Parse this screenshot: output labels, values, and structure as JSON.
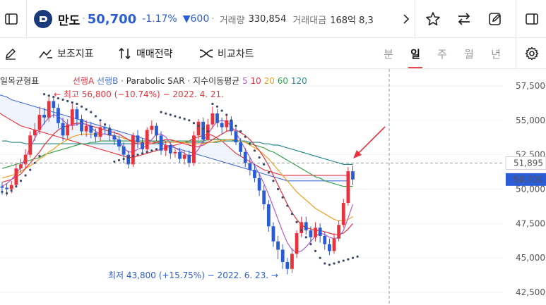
{
  "header": {
    "stock_name": "만도",
    "price": "50,700",
    "change_rate": "-1.17%",
    "change_amount": "▼600",
    "volume_label": "거래량",
    "volume_value": "330,854",
    "amount_label": "거래대금",
    "amount_value": "168억 8,3"
  },
  "toolbar": {
    "indicator_label": "보조지표",
    "strategy_label": "매매전략",
    "compare_label": "비교차트",
    "periods": [
      "분",
      "일",
      "주",
      "월",
      "년"
    ],
    "active_period": "일"
  },
  "legend": {
    "ichimoku": "일목균형표",
    "span_a": "선행A",
    "span_b": "선행B",
    "sar": "Parabolic SAR",
    "ma_label": "지수이동평균",
    "ma_periods": [
      "5",
      "10",
      "20",
      "60",
      "120"
    ]
  },
  "annotations": {
    "high": "← 최고 56,800 (−10.74%) − 2022. 4. 21.",
    "low": "최저 43,800 (+15.75%) − 2022. 6. 23. →"
  },
  "colors": {
    "up": "#e8323c",
    "down": "#2a5cd6",
    "span_a": "#e8323c",
    "span_b": "#4a6fd6",
    "sar": "#3a4a66",
    "ma5": "#b05cd0",
    "ma10": "#e8323c",
    "ma20": "#f0a020",
    "ma60": "#3aa050",
    "ma120": "#2a8a8a"
  },
  "chart_data": {
    "type": "candlestick",
    "y_ticks": [
      "57,500",
      "55,000",
      "52,500",
      "50,000",
      "47,500",
      "45,000",
      "42,500"
    ],
    "ylim": [
      42000,
      58800
    ],
    "current_price_label": "50,700",
    "crosshair_price_label": "51,895",
    "candles": [
      [
        50200,
        50100,
        50500,
        49600
      ],
      [
        50100,
        50000,
        50400,
        49500
      ],
      [
        50000,
        50300,
        50600,
        49700
      ],
      [
        50300,
        51500,
        51800,
        50100
      ],
      [
        51500,
        51800,
        52200,
        51200
      ],
      [
        51800,
        52500,
        52900,
        51500
      ],
      [
        52500,
        53900,
        54200,
        52300
      ],
      [
        53900,
        54300,
        54800,
        53500
      ],
      [
        54300,
        55400,
        56000,
        54000
      ],
      [
        55400,
        55200,
        55900,
        54700
      ],
      [
        55200,
        56400,
        56800,
        54900
      ],
      [
        56400,
        55900,
        56600,
        55200
      ],
      [
        55900,
        54800,
        56200,
        54400
      ],
      [
        54800,
        53900,
        55200,
        53500
      ],
      [
        53900,
        54700,
        55100,
        53600
      ],
      [
        54700,
        55800,
        56200,
        54300
      ],
      [
        55800,
        55100,
        56000,
        54600
      ],
      [
        55100,
        54200,
        55400,
        53900
      ],
      [
        54200,
        54600,
        55000,
        53800
      ],
      [
        54600,
        54100,
        54900,
        53700
      ],
      [
        54100,
        53800,
        54400,
        53400
      ],
      [
        53800,
        54500,
        54900,
        53500
      ],
      [
        54500,
        54400,
        54800,
        54000
      ],
      [
        54400,
        53900,
        54700,
        53500
      ],
      [
        53900,
        53600,
        54200,
        53200
      ],
      [
        53600,
        53100,
        53900,
        52800
      ],
      [
        53100,
        52500,
        53400,
        51900
      ],
      [
        52500,
        51800,
        52800,
        51500
      ],
      [
        51800,
        53900,
        54100,
        51600
      ],
      [
        53900,
        53400,
        54300,
        53000
      ],
      [
        53400,
        52900,
        53700,
        52600
      ],
      [
        52900,
        54300,
        54500,
        52700
      ],
      [
        54300,
        54600,
        55000,
        54000
      ],
      [
        54600,
        53900,
        54800,
        53500
      ],
      [
        53900,
        52800,
        54200,
        52500
      ],
      [
        52800,
        53200,
        53500,
        52400
      ],
      [
        53200,
        52600,
        53400,
        52200
      ],
      [
        52600,
        52700,
        53000,
        52300
      ],
      [
        52700,
        52200,
        53000,
        51900
      ],
      [
        52200,
        52500,
        52800,
        51800
      ],
      [
        52500,
        51900,
        52800,
        51600
      ],
      [
        51900,
        53900,
        54200,
        51700
      ],
      [
        53900,
        54900,
        55100,
        53600
      ],
      [
        54900,
        53600,
        55200,
        53300
      ],
      [
        53600,
        54700,
        55100,
        53500
      ],
      [
        54700,
        55500,
        56000,
        54400
      ],
      [
        55500,
        54800,
        55800,
        54500
      ],
      [
        54800,
        54500,
        55200,
        54000
      ],
      [
        54500,
        55000,
        55400,
        54200
      ],
      [
        55000,
        54200,
        55300,
        53900
      ],
      [
        54200,
        53400,
        54500,
        53200
      ],
      [
        53400,
        52700,
        53700,
        52400
      ],
      [
        52700,
        51900,
        53000,
        51600
      ],
      [
        51900,
        51400,
        52300,
        51000
      ],
      [
        51400,
        50800,
        51800,
        50500
      ],
      [
        50800,
        49900,
        51200,
        49500
      ],
      [
        49900,
        48900,
        50300,
        48500
      ],
      [
        48900,
        47300,
        49200,
        46900
      ],
      [
        47300,
        46200,
        47600,
        45800
      ],
      [
        46200,
        45600,
        46600,
        44900
      ],
      [
        45600,
        44700,
        46000,
        44200
      ],
      [
        44700,
        44200,
        45000,
        43800
      ],
      [
        44200,
        45300,
        45700,
        43900
      ],
      [
        45300,
        46800,
        47000,
        45000
      ],
      [
        46800,
        47600,
        48000,
        46500
      ],
      [
        47600,
        47000,
        48000,
        46700
      ],
      [
        47000,
        46500,
        47300,
        46100
      ],
      [
        46500,
        47200,
        47600,
        46200
      ],
      [
        47200,
        46600,
        47500,
        46100
      ],
      [
        46600,
        46000,
        46900,
        45600
      ],
      [
        46000,
        45500,
        46400,
        45200
      ],
      [
        45500,
        46400,
        46800,
        45300
      ],
      [
        46400,
        47400,
        47700,
        46200
      ],
      [
        47400,
        49000,
        49300,
        47200
      ],
      [
        49000,
        51300,
        51600,
        48800
      ],
      [
        51300,
        50700,
        51700,
        50300
      ]
    ],
    "span_a": [
      56500,
      56200,
      55900,
      55700,
      55400,
      55200,
      55000,
      54800,
      54600,
      54500,
      54400,
      54300,
      54200,
      54100,
      54000,
      53900,
      53800,
      53700,
      53600,
      53500,
      53400,
      53300,
      53200,
      53100,
      53000,
      52900,
      52800,
      52700,
      52600,
      52500,
      52400,
      52300,
      52300,
      52400,
      52500,
      52600,
      52700,
      52800,
      52900,
      53000,
      53100,
      53200,
      53300,
      53400,
      53500,
      53700,
      53800,
      53900,
      54000,
      53900,
      53700,
      53500,
      53200,
      52900,
      52600,
      52400,
      52200,
      52000,
      51800,
      51600,
      51400,
      51300,
      51200,
      51100,
      51000,
      51000,
      51000,
      51000,
      51000,
      51000,
      51000,
      51000,
      51000,
      51000,
      51000,
      51000,
      51000,
      51000,
      51000
    ],
    "span_b": [
      57000,
      57000,
      57000,
      56900,
      56800,
      56700,
      56500,
      56400,
      56300,
      56200,
      56100,
      56000,
      55900,
      55800,
      55700,
      55600,
      55500,
      55400,
      55300,
      55200,
      55100,
      55000,
      54900,
      54800,
      54700,
      54600,
      54500,
      54400,
      54300,
      54200,
      54100,
      54000,
      53900,
      53800,
      53700,
      53600,
      53500,
      53400,
      53300,
      53200,
      53100,
      53000,
      52900,
      52800,
      52700,
      52600,
      52500,
      52400,
      52300,
      52200,
      52100,
      52000,
      51900,
      51800,
      51700,
      51600,
      51500,
      51400,
      51300,
      51200,
      51100,
      51000,
      50900,
      50800,
      50700,
      50600,
      50600,
      50600,
      50600,
      50600,
      50600,
      50600,
      50600,
      50600,
      50600,
      50600,
      50600,
      50600,
      50600
    ],
    "sar": [
      49800,
      49700,
      49900,
      50200,
      50600,
      51000,
      51400,
      51900,
      52400,
      56900,
      56800,
      56700,
      56600,
      56500,
      56400,
      56300,
      56200,
      56000,
      55800,
      55600,
      55300,
      55000,
      54700,
      54400,
      52000,
      52100,
      52200,
      52300,
      52400,
      52500,
      52600,
      52700,
      52800,
      52900,
      55600,
      55500,
      55400,
      55300,
      55200,
      55100,
      55000,
      54800,
      54600,
      54400,
      54200,
      56200,
      56000,
      55700,
      55400,
      55000,
      54600,
      54200,
      53800,
      53300,
      52800,
      52300,
      51800,
      51200,
      50600,
      50000,
      49400,
      48800,
      48200,
      47600,
      47000,
      46500,
      46000,
      45500,
      45000,
      44600,
      44500,
      44600,
      44700,
      44800,
      44900,
      45000,
      45100
    ],
    "ma5": [
      50200,
      50400,
      50700,
      51100,
      51600,
      52300,
      53000,
      53700,
      54300,
      54800,
      55200,
      55400,
      55300,
      55000,
      54700,
      54600,
      54700,
      54800,
      54700,
      54500,
      54200,
      54000,
      54000,
      54000,
      53800,
      53500,
      53000,
      52700,
      52700,
      52900,
      53000,
      53200,
      53600,
      54000,
      54000,
      53800,
      53300,
      53000,
      52800,
      52600,
      52400,
      52500,
      52900,
      53500,
      54000,
      54500,
      54900,
      55000,
      54900,
      54600,
      54100,
      53500,
      52900,
      52300,
      51700,
      51100,
      50400,
      49600,
      48700,
      47800,
      46900,
      46100,
      45600,
      45400,
      45500,
      45800,
      46200,
      46600,
      46800,
      46700,
      46500,
      46400,
      46500,
      47000,
      47900,
      48900
    ],
    "ma10": [
      50500,
      50600,
      50700,
      50900,
      51100,
      51500,
      51900,
      52300,
      52700,
      53200,
      53600,
      54000,
      54300,
      54500,
      54600,
      54700,
      54800,
      54800,
      54700,
      54600,
      54500,
      54400,
      54300,
      54200,
      54100,
      54000,
      53800,
      53600,
      53400,
      53300,
      53300,
      53300,
      53300,
      53400,
      53500,
      53600,
      53600,
      53500,
      53400,
      53300,
      53200,
      53100,
      53100,
      53200,
      53400,
      53600,
      53800,
      54000,
      54200,
      54300,
      54300,
      54100,
      53900,
      53600,
      53200,
      52800,
      52300,
      51700,
      51000,
      50300,
      49600,
      48900,
      48300,
      47800,
      47400,
      47200,
      47100,
      47000,
      47000,
      46900,
      46800,
      46700,
      46700,
      46800,
      47100,
      47500
    ],
    "ma20": [
      50800,
      50900,
      51000,
      51100,
      51300,
      51500,
      51700,
      51900,
      52200,
      52400,
      52700,
      52900,
      53200,
      53400,
      53600,
      53800,
      53900,
      54000,
      54000,
      54000,
      54000,
      54000,
      54000,
      53900,
      53900,
      53800,
      53700,
      53600,
      53500,
      53400,
      53400,
      53400,
      53400,
      53400,
      53400,
      53400,
      53400,
      53400,
      53400,
      53400,
      53300,
      53300,
      53300,
      53300,
      53400,
      53400,
      53500,
      53500,
      53600,
      53600,
      53600,
      53500,
      53400,
      53200,
      53000,
      52800,
      52500,
      52200,
      51800,
      51400,
      51000,
      50600,
      50200,
      49800,
      49500,
      49200,
      48900,
      48600,
      48400,
      48200,
      48000,
      47800,
      47700,
      47700,
      47800,
      48000
    ],
    "ma60": [
      51500,
      51600,
      51700,
      51800,
      51900,
      52000,
      52100,
      52200,
      52300,
      52500,
      52600,
      52700,
      52800,
      52900,
      53000,
      53100,
      53200,
      53300,
      53300,
      53400,
      53400,
      53500,
      53500,
      53500,
      53500,
      53500,
      53500,
      53500,
      53500,
      53500,
      53500,
      53500,
      53500,
      53500,
      53500,
      53500,
      53500,
      53500,
      53500,
      53500,
      53500,
      53500,
      53500,
      53500,
      53600,
      53600,
      53600,
      53600,
      53600,
      53600,
      53500,
      53500,
      53400,
      53300,
      53200,
      53100,
      53000,
      52800,
      52700,
      52500,
      52300,
      52100,
      51900,
      51700,
      51500,
      51300,
      51100,
      50900,
      50800,
      50600,
      50500,
      50400,
      50300,
      50200,
      50200,
      50200
    ],
    "ma120": [
      53500,
      53500,
      53400,
      53400,
      53400,
      53300,
      53300,
      53300,
      53300,
      53300,
      53300,
      53300,
      53300,
      53300,
      53300,
      53300,
      53300,
      53300,
      53300,
      53300,
      53300,
      53300,
      53300,
      53300,
      53300,
      53300,
      53300,
      53300,
      53300,
      53300,
      53300,
      53300,
      53300,
      53300,
      53300,
      53400,
      53400,
      53400,
      53400,
      53400,
      53400,
      53400,
      53400,
      53400,
      53400,
      53400,
      53400,
      53500,
      53500,
      53500,
      53500,
      53500,
      53500,
      53400,
      53400,
      53400,
      53300,
      53300,
      53200,
      53200,
      53100,
      53000,
      52900,
      52800,
      52700,
      52600,
      52500,
      52400,
      52300,
      52200,
      52100,
      52000,
      51900,
      51800,
      51800,
      51800
    ]
  }
}
